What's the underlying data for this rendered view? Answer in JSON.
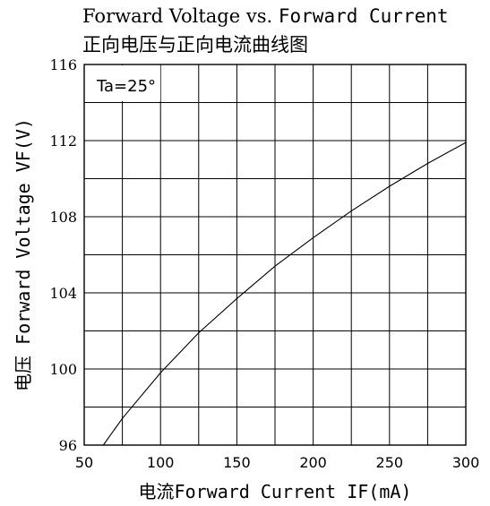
{
  "chart_data": {
    "type": "line",
    "title_en_part1": "Forward Voltage vs.",
    "title_en_part2": "Forward Current",
    "title_zh": "正向电压与正向电流曲线图",
    "xlabel": "电流Forward Current IF(mA)",
    "ylabel": "电压 Forward Voltage VF(V)",
    "annotation": "Ta=25°",
    "xlim": [
      50,
      300
    ],
    "ylim": [
      96,
      116
    ],
    "x_ticks": [
      50,
      100,
      150,
      200,
      250,
      300
    ],
    "y_ticks": [
      96,
      100,
      104,
      108,
      112,
      116
    ],
    "x_grid_step": 25,
    "y_grid_step": 2,
    "grid": true,
    "series": [
      {
        "x": [
          62.5,
          75,
          100,
          125,
          150,
          175,
          200,
          225,
          250,
          275,
          300
        ],
        "y": [
          96.0,
          97.4,
          99.8,
          101.9,
          103.7,
          105.4,
          106.9,
          108.3,
          109.6,
          110.8,
          111.9
        ]
      }
    ]
  }
}
